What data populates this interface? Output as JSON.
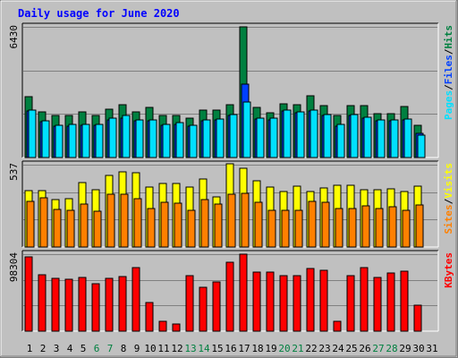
{
  "chart_data": {
    "title": "Daily usage for June 2020",
    "type": "bar",
    "categories": [
      "1",
      "2",
      "3",
      "4",
      "5",
      "6",
      "7",
      "8",
      "9",
      "10",
      "11",
      "12",
      "13",
      "14",
      "15",
      "16",
      "17",
      "18",
      "19",
      "20",
      "21",
      "22",
      "23",
      "24",
      "25",
      "26",
      "27",
      "28",
      "29",
      "30",
      "31"
    ],
    "weekend_days": [
      6,
      7,
      13,
      14,
      20,
      21,
      27,
      28
    ],
    "panels": [
      {
        "id": "hits-files-pages",
        "ymax_label": "6430",
        "ymax": 6430,
        "legend": [
          {
            "text": "Pages",
            "color": "#00E0FF"
          },
          {
            "text": "/",
            "color": "#000000"
          },
          {
            "text": "Files",
            "color": "#0040FF"
          },
          {
            "text": "/",
            "color": "#000000"
          },
          {
            "text": "Hits",
            "color": "#008040"
          }
        ],
        "series": [
          {
            "name": "Hits",
            "color": "#008040",
            "values": [
              3000,
              2250,
              2050,
              2050,
              2250,
              2050,
              2400,
              2600,
              2250,
              2450,
              2050,
              2050,
              1950,
              2350,
              2350,
              2600,
              6430,
              2450,
              2200,
              2650,
              2600,
              3050,
              2550,
              2050,
              2550,
              2550,
              2150,
              2150,
              2500,
              1600,
              null
            ]
          },
          {
            "name": "Files",
            "color": "#0040FF",
            "values": [
              2300,
              1750,
              1550,
              1550,
              1600,
              1600,
              1850,
              1950,
              1800,
              1800,
              1600,
              1650,
              1550,
              1800,
              1850,
              2050,
              3600,
              1900,
              1850,
              2300,
              2200,
              2300,
              2050,
              1550,
              2050,
              1950,
              1800,
              1800,
              1850,
              1200,
              null
            ]
          },
          {
            "name": "Pages",
            "color": "#00E0FF",
            "values": [
              2350,
              1800,
              1600,
              1650,
              1650,
              1650,
              1950,
              2050,
              1850,
              1850,
              1650,
              1700,
              1600,
              1850,
              1900,
              2100,
              2750,
              1950,
              1950,
              2350,
              2250,
              2350,
              2100,
              1650,
              2100,
              2000,
              1850,
              1850,
              1900,
              1100,
              null
            ]
          }
        ]
      },
      {
        "id": "visits-sites",
        "ymax_label": "537",
        "ymax": 537,
        "legend": [
          {
            "text": "Sites",
            "color": "#FF8000"
          },
          {
            "text": "/",
            "color": "#000000"
          },
          {
            "text": "Visits",
            "color": "#FFFF00"
          }
        ],
        "series": [
          {
            "name": "Visits",
            "color": "#FFFF00",
            "values": [
              370,
              365,
              310,
              315,
              420,
              375,
              465,
              490,
              485,
              390,
              415,
              415,
              390,
              445,
              325,
              540,
              515,
              430,
              390,
              360,
              395,
              360,
              385,
              405,
              405,
              375,
              375,
              380,
              360,
              395,
              null
            ]
          },
          {
            "name": "Sites",
            "color": "#FF8000",
            "values": [
              295,
              320,
              245,
              240,
              280,
              235,
              345,
              345,
              315,
              250,
              290,
              285,
              240,
              310,
              280,
              345,
              350,
              290,
              240,
              240,
              240,
              295,
              290,
              250,
              250,
              270,
              250,
              265,
              240,
              275,
              null
            ]
          }
        ]
      },
      {
        "id": "kbytes",
        "ymax_label": "98304",
        "ymax": 98304,
        "legend": [
          {
            "text": "KBytes",
            "color": "#FF0000"
          }
        ],
        "series": [
          {
            "name": "KBytes",
            "color": "#FF0000",
            "values": [
              94600,
              72000,
              67000,
              66000,
              69000,
              61000,
              68000,
              70000,
              81000,
              37000,
              13000,
              9000,
              71000,
              56000,
              63000,
              88000,
              98304,
              75000,
              75000,
              71000,
              71000,
              80000,
              78000,
              13000,
              71000,
              81000,
              69000,
              74000,
              77000,
              33000,
              null
            ]
          }
        ]
      }
    ]
  }
}
